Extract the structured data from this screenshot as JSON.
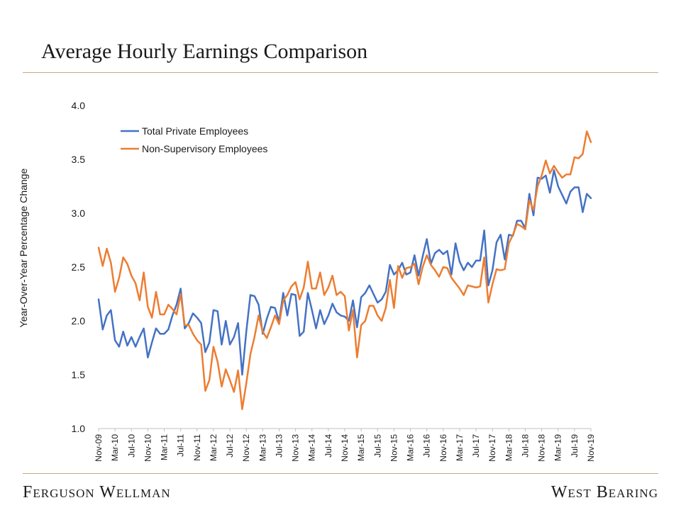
{
  "header": {
    "title": "Average Hourly Earnings Comparison"
  },
  "footer": {
    "left_brand": "Ferguson Wellman",
    "right_brand": "West Bearing"
  },
  "colors": {
    "series1": "#4472c4",
    "series2": "#ed7d31",
    "rule": "#c9a886"
  },
  "chart_data": {
    "type": "line",
    "title": "Average Hourly Earnings Comparison",
    "xlabel": "",
    "ylabel": "Year-Over-Year Percentage Change",
    "ylim": [
      1.0,
      4.0
    ],
    "yticks": [
      "1.0",
      "1.5",
      "2.0",
      "2.5",
      "3.0",
      "3.5",
      "4.0"
    ],
    "xtick_labels": [
      "Nov-09",
      "Mar-10",
      "Jul-10",
      "Nov-10",
      "Mar-11",
      "Jul-11",
      "Nov-11",
      "Mar-12",
      "Jul-12",
      "Nov-12",
      "Mar-13",
      "Jul-13",
      "Nov-13",
      "Mar-14",
      "Jul-14",
      "Nov-14",
      "Mar-15",
      "Jul-15",
      "Nov-15",
      "Mar-16",
      "Jul-16",
      "Nov-16",
      "Mar-17",
      "Jul-17",
      "Nov-17",
      "Mar-18",
      "Jul-18",
      "Nov-18",
      "Mar-19",
      "Jul-19",
      "Nov-19"
    ],
    "legend_position": "top-left",
    "series": [
      {
        "name": "Total Private Employees",
        "values": [
          2.2,
          1.92,
          2.05,
          2.1,
          1.82,
          1.76,
          1.9,
          1.77,
          1.85,
          1.76,
          1.85,
          1.93,
          1.66,
          1.8,
          1.93,
          1.88,
          1.88,
          1.92,
          2.05,
          2.15,
          2.3,
          1.93,
          1.98,
          2.07,
          2.03,
          1.98,
          1.71,
          1.8,
          2.1,
          2.09,
          1.78,
          2.0,
          1.78,
          1.85,
          1.98,
          1.5,
          1.9,
          2.24,
          2.23,
          2.15,
          1.88,
          2.02,
          2.13,
          2.12,
          1.99,
          2.26,
          2.05,
          2.25,
          2.24,
          1.86,
          1.9,
          2.26,
          2.1,
          1.93,
          2.1,
          1.97,
          2.05,
          2.16,
          2.08,
          2.05,
          2.04,
          2.0,
          2.19,
          1.94,
          2.22,
          2.26,
          2.33,
          2.25,
          2.17,
          2.2,
          2.27,
          2.52,
          2.43,
          2.47,
          2.54,
          2.43,
          2.45,
          2.61,
          2.42,
          2.6,
          2.76,
          2.53,
          2.63,
          2.66,
          2.62,
          2.65,
          2.43,
          2.72,
          2.55,
          2.47,
          2.54,
          2.5,
          2.56,
          2.56,
          2.84,
          2.33,
          2.47,
          2.73,
          2.8,
          2.57,
          2.8,
          2.79,
          2.93,
          2.93,
          2.86,
          3.18,
          2.98,
          3.33,
          3.32,
          3.35,
          3.19,
          3.4,
          3.25,
          3.17,
          3.09,
          3.2,
          3.24,
          3.24,
          3.01,
          3.18,
          3.14
        ]
      },
      {
        "name": "Non-Supervisory Employees",
        "values": [
          2.68,
          2.51,
          2.67,
          2.54,
          2.27,
          2.4,
          2.59,
          2.53,
          2.42,
          2.35,
          2.19,
          2.45,
          2.13,
          2.03,
          2.27,
          2.06,
          2.06,
          2.15,
          2.11,
          2.06,
          2.25,
          1.96,
          1.96,
          1.88,
          1.82,
          1.78,
          1.35,
          1.45,
          1.76,
          1.62,
          1.39,
          1.55,
          1.45,
          1.34,
          1.54,
          1.18,
          1.42,
          1.69,
          1.85,
          2.05,
          1.9,
          1.84,
          1.94,
          2.05,
          1.97,
          2.19,
          2.24,
          2.32,
          2.36,
          2.2,
          2.31,
          2.55,
          2.3,
          2.3,
          2.45,
          2.24,
          2.31,
          2.42,
          2.24,
          2.27,
          2.23,
          1.91,
          2.1,
          1.66,
          1.96,
          2.0,
          2.14,
          2.14,
          2.05,
          2.0,
          2.12,
          2.38,
          2.12,
          2.51,
          2.4,
          2.49,
          2.5,
          2.53,
          2.34,
          2.5,
          2.61,
          2.52,
          2.47,
          2.41,
          2.5,
          2.49,
          2.4,
          2.35,
          2.3,
          2.24,
          2.33,
          2.32,
          2.31,
          2.32,
          2.59,
          2.17,
          2.34,
          2.48,
          2.47,
          2.48,
          2.72,
          2.8,
          2.9,
          2.88,
          2.85,
          3.12,
          3.03,
          3.25,
          3.35,
          3.49,
          3.37,
          3.44,
          3.38,
          3.33,
          3.36,
          3.36,
          3.52,
          3.51,
          3.55,
          3.76,
          3.66
        ]
      }
    ]
  }
}
